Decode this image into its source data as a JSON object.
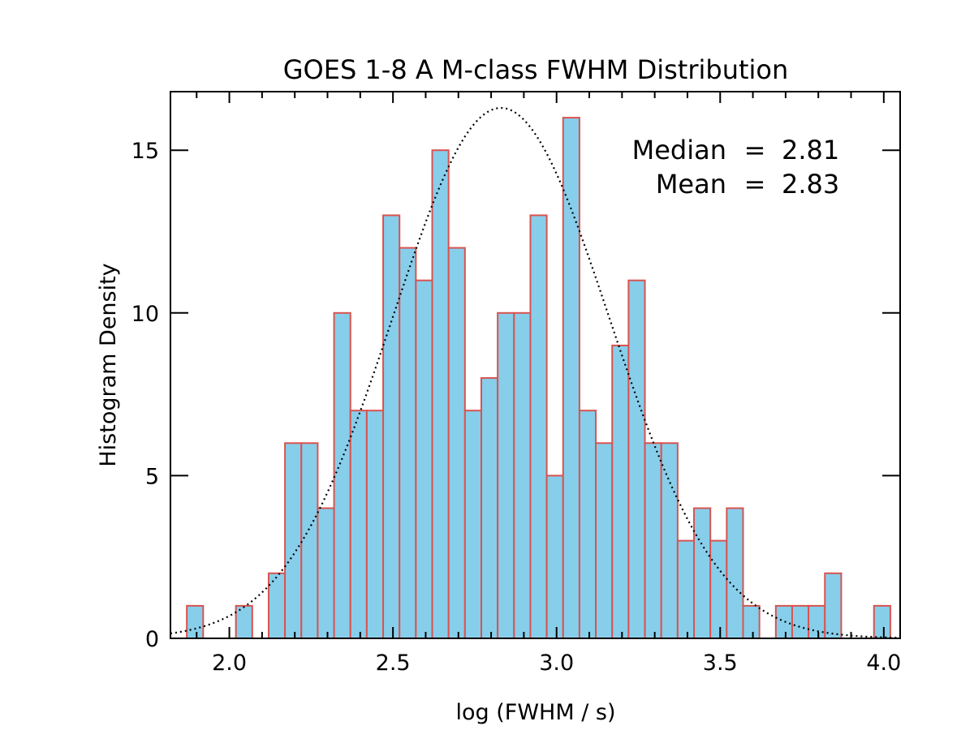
{
  "chart_data": {
    "type": "bar",
    "title": "GOES 1-8 A M-class FWHM Distribution",
    "xlabel": "log (FWHM / s)",
    "ylabel": "Histogram Density",
    "xlim": [
      1.82,
      4.05
    ],
    "ylim": [
      0,
      16.8
    ],
    "bin_width": 0.05,
    "x_ticks": [
      "2.0",
      "2.5",
      "3.0",
      "3.5",
      "4.0"
    ],
    "x_tick_values": [
      2.0,
      2.5,
      3.0,
      3.5,
      4.0
    ],
    "y_ticks": [
      "0",
      "5",
      "10",
      "15"
    ],
    "y_tick_values": [
      0,
      5,
      10,
      15
    ],
    "bin_left_edges": [
      1.87,
      1.92,
      1.97,
      2.02,
      2.07,
      2.12,
      2.17,
      2.22,
      2.27,
      2.32,
      2.37,
      2.42,
      2.47,
      2.52,
      2.57,
      2.62,
      2.67,
      2.72,
      2.77,
      2.82,
      2.87,
      2.92,
      2.97,
      3.02,
      3.07,
      3.12,
      3.17,
      3.22,
      3.27,
      3.32,
      3.37,
      3.42,
      3.47,
      3.52,
      3.57,
      3.62,
      3.67,
      3.72,
      3.77,
      3.82,
      3.87,
      3.92,
      3.97
    ],
    "values": [
      1,
      0,
      0,
      1,
      0,
      2,
      6,
      6,
      4,
      10,
      7,
      7,
      13,
      12,
      11,
      15,
      12,
      7,
      8,
      10,
      10,
      13,
      5,
      16,
      7,
      6,
      9,
      11,
      6,
      6,
      3,
      4,
      3,
      4,
      1,
      0,
      1,
      1,
      1,
      2,
      0,
      0,
      1
    ],
    "gaussian_fit": {
      "mean": 2.83,
      "sigma": 0.33,
      "peak": 16.3,
      "style": "dotted"
    },
    "annotations": [
      {
        "label": "Median",
        "eq": "=",
        "value": "2.81"
      },
      {
        "label": "Mean",
        "eq": "=",
        "value": "2.83"
      }
    ],
    "colors": {
      "bar_fill": "#87ceeb",
      "bar_edge": "#d9534f",
      "axis": "#000000",
      "curve": "#000000"
    }
  }
}
